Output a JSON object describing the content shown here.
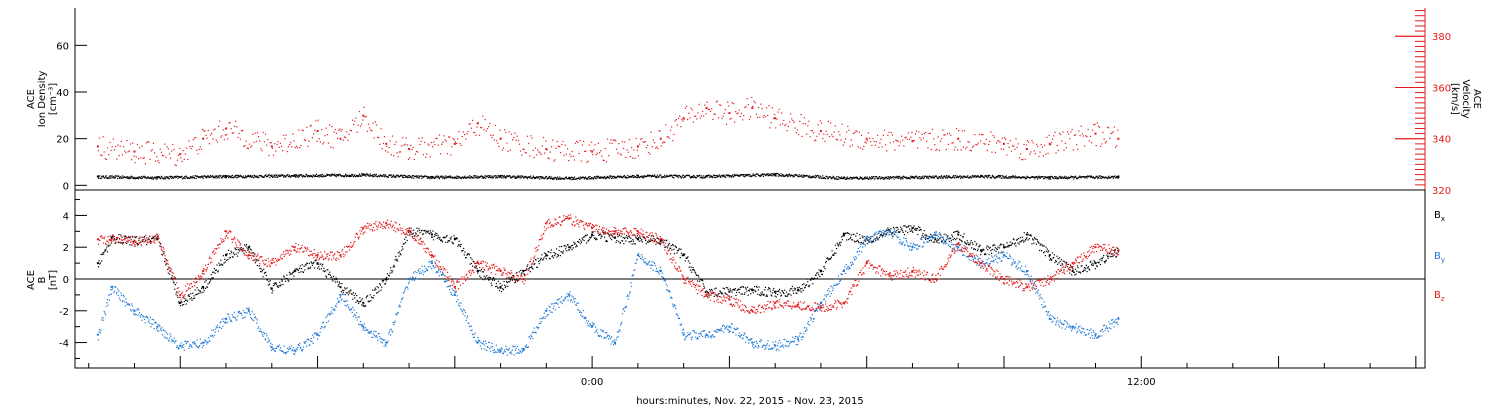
{
  "xlabel": "hours:minutes, Nov. 22, 2015 - Nov. 23, 2015",
  "x_ticks": [
    {
      "hour": 0,
      "label": "0:00"
    },
    {
      "hour": 12,
      "label": "12:00"
    }
  ],
  "colors": {
    "black": "#000000",
    "red": "#e41a1c",
    "blue": "#1f78d4"
  },
  "chart_data": [
    {
      "type": "scatter",
      "panel": "top",
      "x_unit": "hours from Nov. 22, 2015 0:00",
      "xlim": [
        -11.3,
        18.2
      ],
      "ylabel_lines": [
        "ACE",
        "Ion Density",
        "[cm⁻³]"
      ],
      "ylim": [
        -2,
        76
      ],
      "yticks": [
        0,
        20,
        40,
        60
      ],
      "right_ylabel_lines": [
        "ACE",
        "Velocity",
        "[km/s]"
      ],
      "right_ylim": [
        320,
        391
      ],
      "right_yticks": [
        320,
        340,
        360,
        380
      ],
      "grid": false,
      "series": [
        {
          "key": "density",
          "color": "black",
          "axis": "left",
          "x": [
            -10.8,
            -9.5,
            -8,
            -6.5,
            -5,
            -3.5,
            -2,
            -0.5,
            1,
            2.5,
            4,
            5.5,
            7,
            8.5,
            10,
            11.5
          ],
          "y": [
            3.8,
            3.5,
            4,
            4.3,
            4.6,
            3.6,
            4,
            3.2,
            4.1,
            4,
            4.8,
            3.3,
            3.6,
            4,
            3.5,
            3.8
          ]
        },
        {
          "key": "velocity",
          "color": "red",
          "axis": "right",
          "x": [
            -10.8,
            -10,
            -9,
            -8.5,
            -8,
            -7,
            -6,
            -5.5,
            -5,
            -4.5,
            -4,
            -3,
            -2.5,
            -2,
            -1,
            0,
            1,
            1.5,
            2,
            2.5,
            3,
            3.5,
            4,
            5,
            6,
            7,
            8,
            9,
            9.5,
            10,
            11,
            11.5
          ],
          "y": [
            337,
            335,
            334,
            340,
            344,
            337,
            343,
            340,
            349,
            338,
            336,
            338,
            346,
            340,
            336,
            335,
            337,
            340,
            348,
            352,
            350,
            352,
            348,
            343,
            340,
            339,
            340,
            338,
            336,
            338,
            342,
            340
          ]
        }
      ]
    },
    {
      "type": "scatter",
      "panel": "bottom",
      "x_unit": "hours from Nov. 22, 2015 0:00",
      "xlim": [
        -11.3,
        18.2
      ],
      "ylabel_lines": [
        "ACE",
        "B",
        "[nT]"
      ],
      "ylim": [
        -5.6,
        5.6
      ],
      "yticks": [
        -4,
        -2,
        0,
        2,
        4
      ],
      "zero_line": true,
      "grid": false,
      "legend_placement": "right",
      "series": [
        {
          "key": "bx",
          "name": "B",
          "subscript": "x",
          "color": "black",
          "x": [
            -10.8,
            -10.5,
            -10,
            -9.5,
            -9,
            -8.5,
            -8,
            -7.5,
            -7,
            -6.5,
            -6,
            -5.5,
            -5,
            -4.5,
            -4,
            -3.5,
            -3,
            -2.5,
            -2,
            -1.5,
            -1,
            -0.5,
            0,
            0.5,
            1,
            1.5,
            2,
            2.5,
            3,
            3.5,
            4,
            4.5,
            5,
            5.5,
            6,
            6.5,
            7,
            7.5,
            8,
            8.5,
            9,
            9.5,
            10,
            10.5,
            11,
            11.5
          ],
          "y": [
            1,
            2.6,
            2.4,
            2.5,
            -1.5,
            -0.5,
            1.5,
            2,
            -0.6,
            0.5,
            1,
            -0.5,
            -1.5,
            0,
            3,
            2.8,
            2.5,
            0.5,
            -0.5,
            0.5,
            1.5,
            2,
            2.8,
            2.6,
            2.5,
            2.4,
            1.5,
            -0.8,
            -0.8,
            -0.7,
            -0.8,
            -0.7,
            0.5,
            2.8,
            2.5,
            3,
            3.2,
            2.5,
            2.8,
            1.8,
            2,
            2.8,
            1.5,
            0.5,
            1,
            1.8
          ]
        },
        {
          "key": "by",
          "name": "B",
          "subscript": "y",
          "color": "blue",
          "x": [
            -10.8,
            -10.5,
            -10,
            -9.5,
            -9,
            -8.5,
            -8,
            -7.5,
            -7,
            -6.5,
            -6,
            -5.5,
            -5,
            -4.5,
            -4,
            -3.5,
            -3,
            -2.5,
            -2,
            -1.5,
            -1,
            -0.5,
            0,
            0.5,
            1,
            1.5,
            2,
            2.5,
            3,
            3.5,
            4,
            4.5,
            5,
            5.5,
            6,
            6.5,
            7,
            7.5,
            8,
            8.5,
            9,
            9.5,
            10,
            10.5,
            11,
            11.5
          ],
          "y": [
            -3.5,
            -0.5,
            -2,
            -3,
            -4.2,
            -4,
            -2.5,
            -2,
            -4.3,
            -4.5,
            -3.5,
            -1,
            -3,
            -4,
            0,
            1,
            -1,
            -4,
            -4.5,
            -4.4,
            -2,
            -1,
            -3,
            -4,
            1.5,
            0.5,
            -3.5,
            -3.5,
            -3,
            -4,
            -4.2,
            -3.8,
            -1.5,
            0.5,
            2.5,
            3,
            2,
            2.8,
            2,
            1,
            1.5,
            0.5,
            -2.5,
            -3,
            -3.5,
            -2.5
          ]
        },
        {
          "key": "bz",
          "name": "B",
          "subscript": "z",
          "color": "red",
          "x": [
            -10.8,
            -10.5,
            -10,
            -9.5,
            -9,
            -8.5,
            -8,
            -7.5,
            -7,
            -6.5,
            -6,
            -5.5,
            -5,
            -4.5,
            -4,
            -3.5,
            -3,
            -2.5,
            -2,
            -1.5,
            -1,
            -0.5,
            0,
            0.5,
            1,
            1.5,
            2,
            2.5,
            3,
            3.5,
            4,
            4.5,
            5,
            5.5,
            6,
            6.5,
            7,
            7.5,
            8,
            8.5,
            9,
            9.5,
            10,
            10.5,
            11,
            11.5
          ],
          "y": [
            2.5,
            2.5,
            2.4,
            2.6,
            -1,
            0.5,
            3,
            1.5,
            1,
            2,
            1.5,
            1.5,
            3.2,
            3.5,
            3,
            1.5,
            -0.5,
            1,
            0.5,
            0,
            3.5,
            3.8,
            3.2,
            3,
            3,
            2.5,
            0,
            -1,
            -1.3,
            -2,
            -1.5,
            -1.6,
            -1.8,
            -1.5,
            1,
            0.2,
            0.5,
            0,
            2.2,
            1,
            0,
            -0.5,
            0,
            1,
            2,
            1.8
          ]
        }
      ]
    }
  ]
}
